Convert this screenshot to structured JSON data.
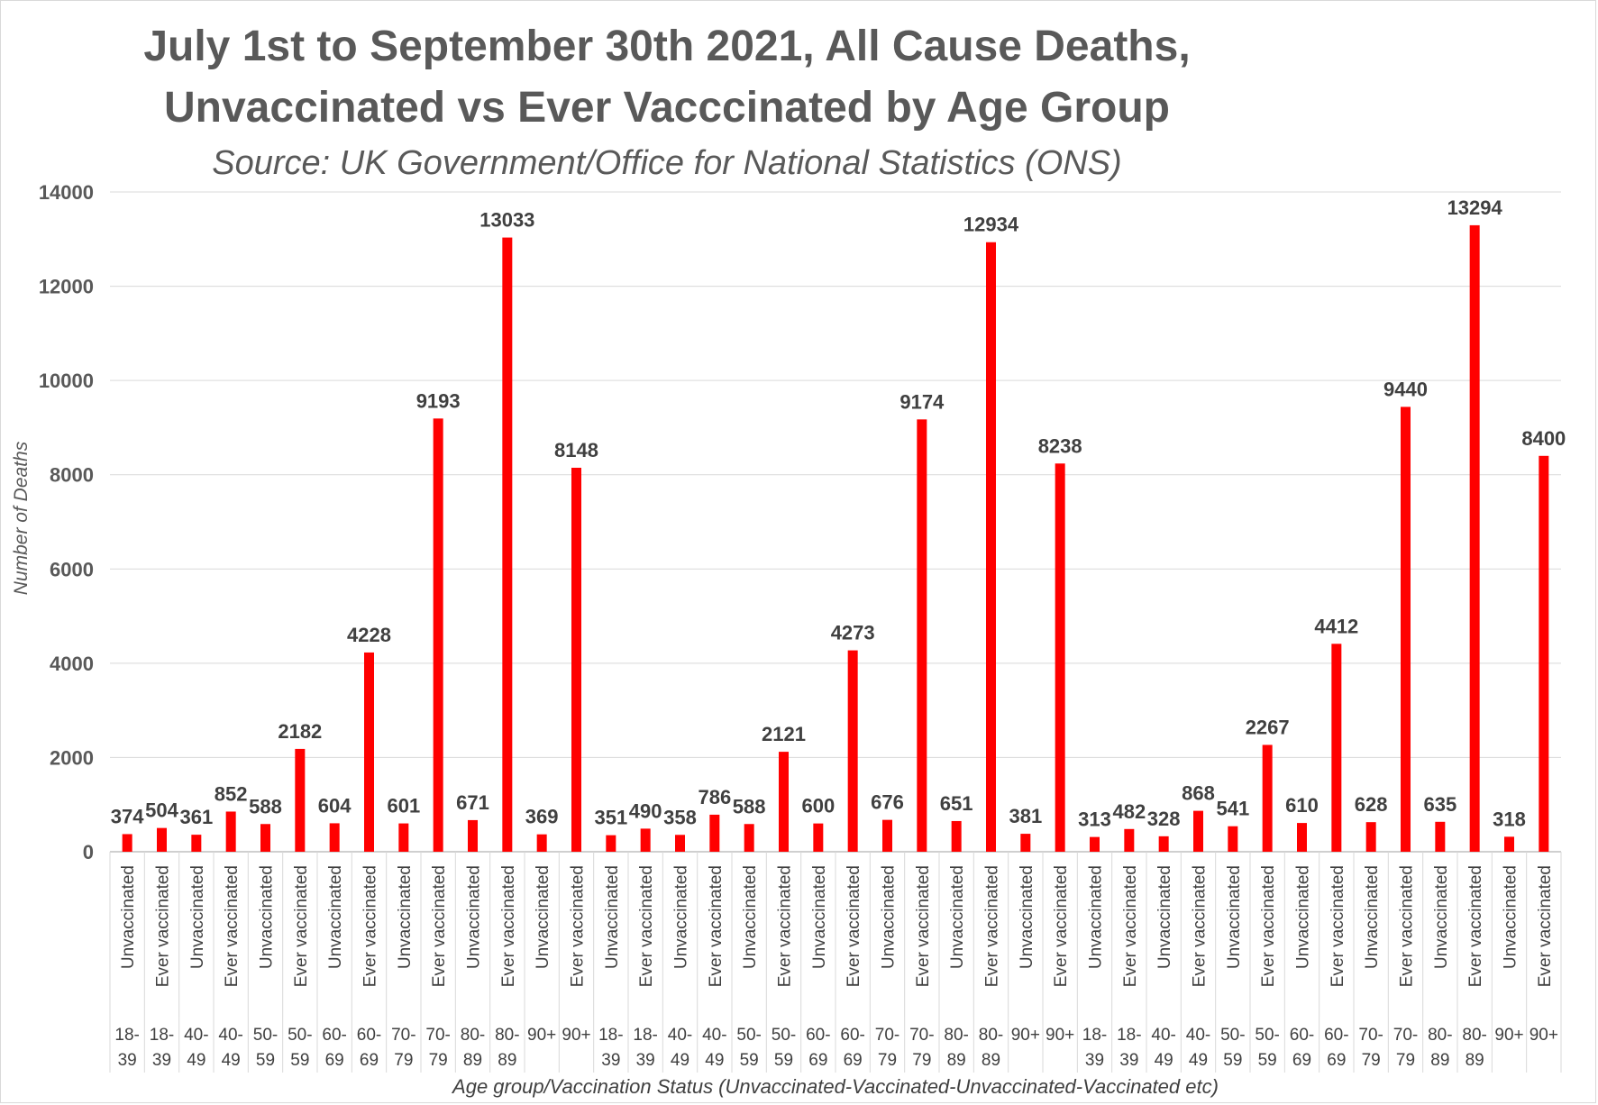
{
  "chart_data": {
    "type": "bar",
    "title_line1": "July 1st to September 30th 2021, All Cause Deaths,",
    "title_line2": "Unvaccinated vs Ever Vacccinated by Age Group",
    "subtitle": "Source: UK Government/Office for National Statistics (ONS)",
    "ylabel": "Number of Deaths",
    "xlabel": "Age group/Vaccination Status (Unvaccinated-Vaccinated-Unvaccinated-Vaccinated etc)",
    "ylim": [
      0,
      14000
    ],
    "yticks": [
      0,
      2000,
      4000,
      6000,
      8000,
      10000,
      12000,
      14000
    ],
    "grid": true,
    "bar_color": "#ff0000",
    "categories": [
      {
        "status": "Unvaccinated",
        "age": "18-39"
      },
      {
        "status": "Ever vaccinated",
        "age": "18-39"
      },
      {
        "status": "Unvaccinated",
        "age": "40-49"
      },
      {
        "status": "Ever vaccinated",
        "age": "40-49"
      },
      {
        "status": "Unvaccinated",
        "age": "50-59"
      },
      {
        "status": "Ever vaccinated",
        "age": "50-59"
      },
      {
        "status": "Unvaccinated",
        "age": "60-69"
      },
      {
        "status": "Ever vaccinated",
        "age": "60-69"
      },
      {
        "status": "Unvaccinated",
        "age": "70-79"
      },
      {
        "status": "Ever vaccinated",
        "age": "70-79"
      },
      {
        "status": "Unvaccinated",
        "age": "80-89"
      },
      {
        "status": "Ever vaccinated",
        "age": "80-89"
      },
      {
        "status": "Unvaccinated",
        "age": "90+"
      },
      {
        "status": "Ever vaccinated",
        "age": "90+"
      },
      {
        "status": "Unvaccinated",
        "age": "18-39"
      },
      {
        "status": "Ever vaccinated",
        "age": "18-39"
      },
      {
        "status": "Unvaccinated",
        "age": "40-49"
      },
      {
        "status": "Ever vaccinated",
        "age": "40-49"
      },
      {
        "status": "Unvaccinated",
        "age": "50-59"
      },
      {
        "status": "Ever vaccinated",
        "age": "50-59"
      },
      {
        "status": "Unvaccinated",
        "age": "60-69"
      },
      {
        "status": "Ever vaccinated",
        "age": "60-69"
      },
      {
        "status": "Unvaccinated",
        "age": "70-79"
      },
      {
        "status": "Ever vaccinated",
        "age": "70-79"
      },
      {
        "status": "Unvaccinated",
        "age": "80-89"
      },
      {
        "status": "Ever vaccinated",
        "age": "80-89"
      },
      {
        "status": "Unvaccinated",
        "age": "90+"
      },
      {
        "status": "Ever vaccinated",
        "age": "90+"
      },
      {
        "status": "Unvaccinated",
        "age": "18-39"
      },
      {
        "status": "Ever vaccinated",
        "age": "18-39"
      },
      {
        "status": "Unvaccinated",
        "age": "40-49"
      },
      {
        "status": "Ever vaccinated",
        "age": "40-49"
      },
      {
        "status": "Unvaccinated",
        "age": "50-59"
      },
      {
        "status": "Ever vaccinated",
        "age": "50-59"
      },
      {
        "status": "Unvaccinated",
        "age": "60-69"
      },
      {
        "status": "Ever vaccinated",
        "age": "60-69"
      },
      {
        "status": "Unvaccinated",
        "age": "70-79"
      },
      {
        "status": "Ever vaccinated",
        "age": "70-79"
      },
      {
        "status": "Unvaccinated",
        "age": "80-89"
      },
      {
        "status": "Ever vaccinated",
        "age": "80-89"
      },
      {
        "status": "Unvaccinated",
        "age": "90+"
      },
      {
        "status": "Ever vaccinated",
        "age": "90+"
      }
    ],
    "values": [
      374,
      504,
      361,
      852,
      588,
      2182,
      604,
      4228,
      601,
      9193,
      671,
      13033,
      369,
      8148,
      351,
      490,
      358,
      786,
      588,
      2121,
      600,
      4273,
      676,
      9174,
      651,
      12934,
      381,
      8238,
      313,
      482,
      328,
      868,
      541,
      2267,
      610,
      4412,
      628,
      9440,
      635,
      13294,
      318,
      8400
    ]
  }
}
